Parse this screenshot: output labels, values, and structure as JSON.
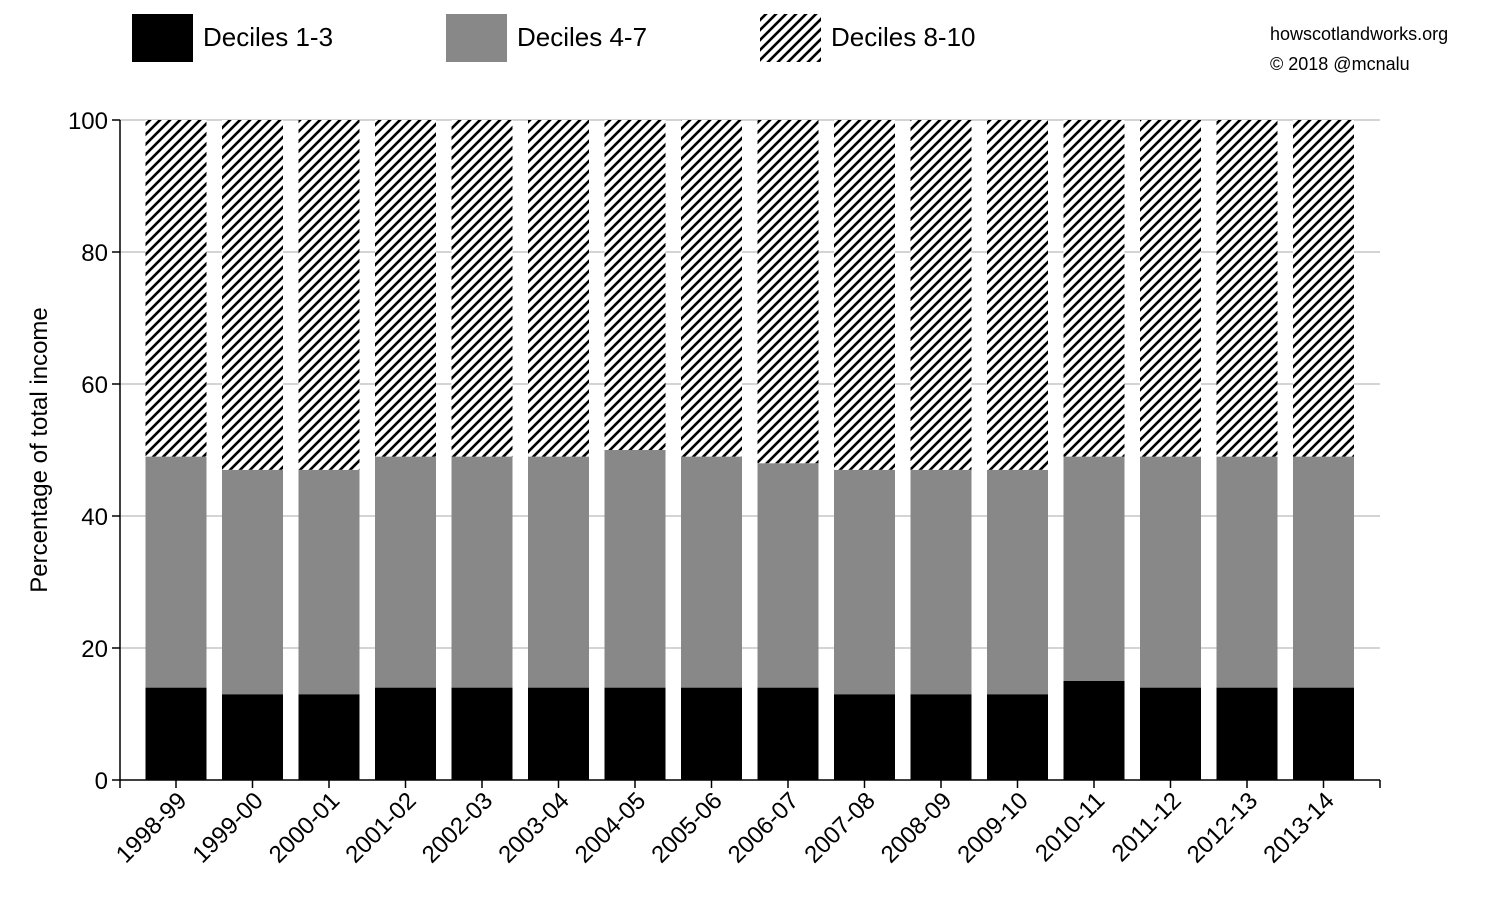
{
  "chart_data": {
    "type": "bar",
    "stacked": true,
    "categories": [
      "1998-99",
      "1999-00",
      "2000-01",
      "2001-02",
      "2002-03",
      "2003-04",
      "2004-05",
      "2005-06",
      "2006-07",
      "2007-08",
      "2008-09",
      "2009-10",
      "2010-11",
      "2011-12",
      "2012-13",
      "2013-14"
    ],
    "series": [
      {
        "name": "Deciles 1-3",
        "fill": "#000000",
        "pattern": "solid",
        "values": [
          14,
          13,
          13,
          14,
          14,
          14,
          14,
          14,
          14,
          13,
          13,
          13,
          15,
          14,
          14,
          14
        ]
      },
      {
        "name": "Deciles 4-7",
        "fill": "#888888",
        "pattern": "solid",
        "values": [
          35,
          34,
          34,
          35,
          35,
          35,
          36,
          35,
          34,
          34,
          34,
          34,
          34,
          35,
          35,
          35
        ]
      },
      {
        "name": "Deciles 8-10",
        "fill": "#000000",
        "pattern": "diagonal-hatch",
        "values": [
          51,
          53,
          53,
          51,
          51,
          51,
          50,
          51,
          52,
          53,
          53,
          53,
          51,
          51,
          51,
          51
        ]
      }
    ],
    "title": "",
    "xlabel": "",
    "ylabel": "Percentage of total income",
    "ylim": [
      0,
      100
    ],
    "yticks": [
      0,
      20,
      40,
      60,
      80,
      100
    ],
    "grid": true,
    "legend_position": "top",
    "credit": {
      "line1": "howscotlandworks.org",
      "line2": "© 2018  @mcnalu"
    }
  }
}
